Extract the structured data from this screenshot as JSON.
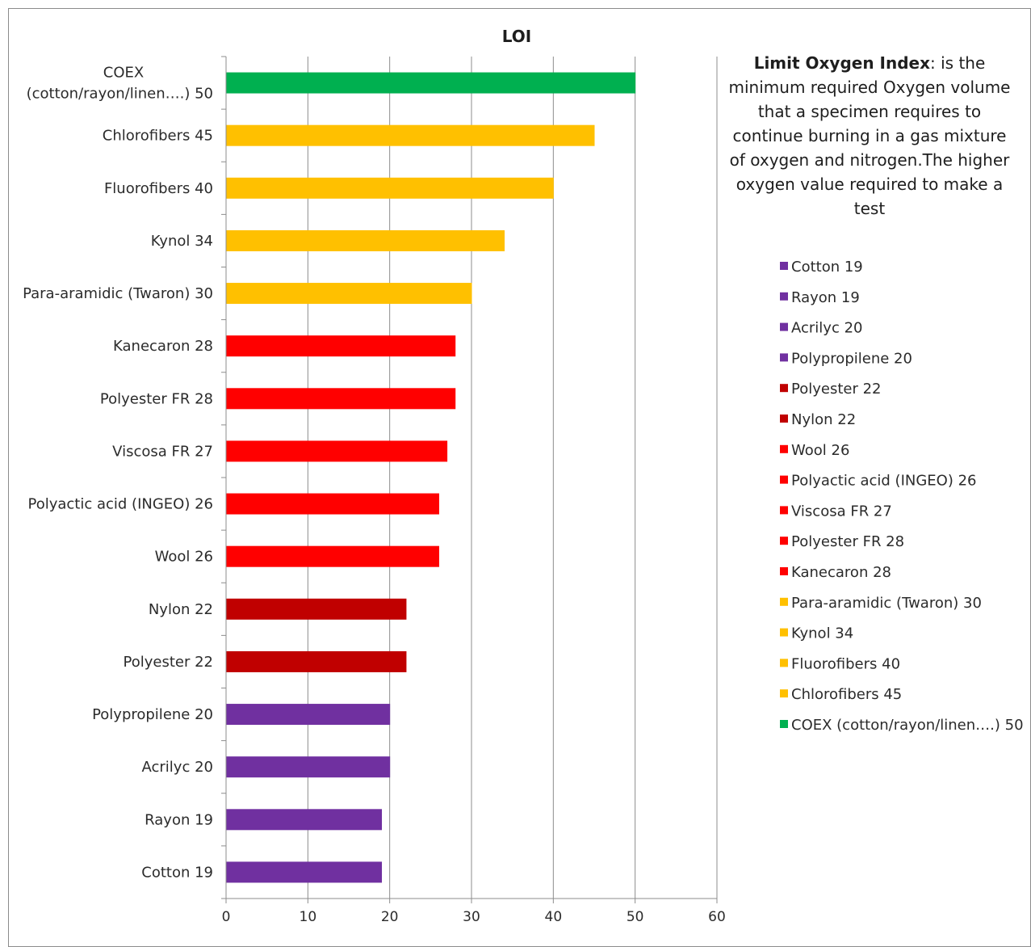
{
  "chart_data": {
    "type": "bar",
    "orientation": "horizontal",
    "title": "LOI",
    "categories": [
      "Cotton 19",
      "Rayon 19",
      "Acrilyc 20",
      "Polypropilene 20",
      "Polyester 22",
      "Nylon 22",
      "Wool 26",
      "Polyactic acid  (INGEO) 26",
      "Viscosa FR 27",
      "Polyester FR 28",
      "Kanecaron 28",
      "Para-aramidic (Twaron) 30",
      "Kynol 34",
      "Fluorofibers 40",
      "Chlorofibers 45",
      "COEX (cotton/rayon/linen….) 50"
    ],
    "category_lines": [
      [
        "Cotton 19"
      ],
      [
        "Rayon 19"
      ],
      [
        "Acrilyc 20"
      ],
      [
        "Polypropilene 20"
      ],
      [
        "Polyester 22"
      ],
      [
        "Nylon 22"
      ],
      [
        "Wool 26"
      ],
      [
        "Polyactic acid  (INGEO) 26"
      ],
      [
        "Viscosa FR 27"
      ],
      [
        "Polyester FR 28"
      ],
      [
        "Kanecaron 28 "
      ],
      [
        "Para-aramidic (Twaron) 30"
      ],
      [
        "Kynol 34"
      ],
      [
        "Fluorofibers 40"
      ],
      [
        "Chlorofibers 45"
      ],
      [
        "COEX",
        "(cotton/rayon/linen….) 50"
      ]
    ],
    "values": [
      19,
      19,
      20,
      20,
      22,
      22,
      26,
      26,
      27,
      28,
      28,
      30,
      34,
      40,
      45,
      50
    ],
    "colors": [
      "#7030a0",
      "#7030a0",
      "#7030a0",
      "#7030a0",
      "#c00000",
      "#c00000",
      "#ff0000",
      "#ff0000",
      "#ff0000",
      "#ff0000",
      "#ff0000",
      "#ffc000",
      "#ffc000",
      "#ffc000",
      "#ffc000",
      "#00b050"
    ],
    "xlim": [
      0,
      60
    ],
    "xticks": [
      0,
      10,
      20,
      30,
      40,
      50,
      60
    ],
    "grid": "vertical",
    "legend": {
      "placement": "right",
      "entries": [
        "Cotton 19",
        "Rayon 19",
        "Acrilyc 20",
        "Polypropilene 20",
        "Polyester 22",
        "Nylon 22",
        "Wool 26",
        "Polyactic acid  (INGEO) 26",
        "Viscosa FR 27",
        "Polyester FR 28",
        " Kanecaron 28",
        "Para-aramidic (Twaron) 30",
        "Kynol 34",
        "Fluorofibers 40",
        "Chlorofibers 45",
        "COEX (cotton/rayon/linen….) 50"
      ]
    }
  },
  "note": {
    "bold": "Limit Oxygen Index",
    "text": ": is the minimum required Oxygen volume that a specimen requires to continue burning in a gas mixture of oxygen and nitrogen.The higher oxygen value required to make a test"
  }
}
